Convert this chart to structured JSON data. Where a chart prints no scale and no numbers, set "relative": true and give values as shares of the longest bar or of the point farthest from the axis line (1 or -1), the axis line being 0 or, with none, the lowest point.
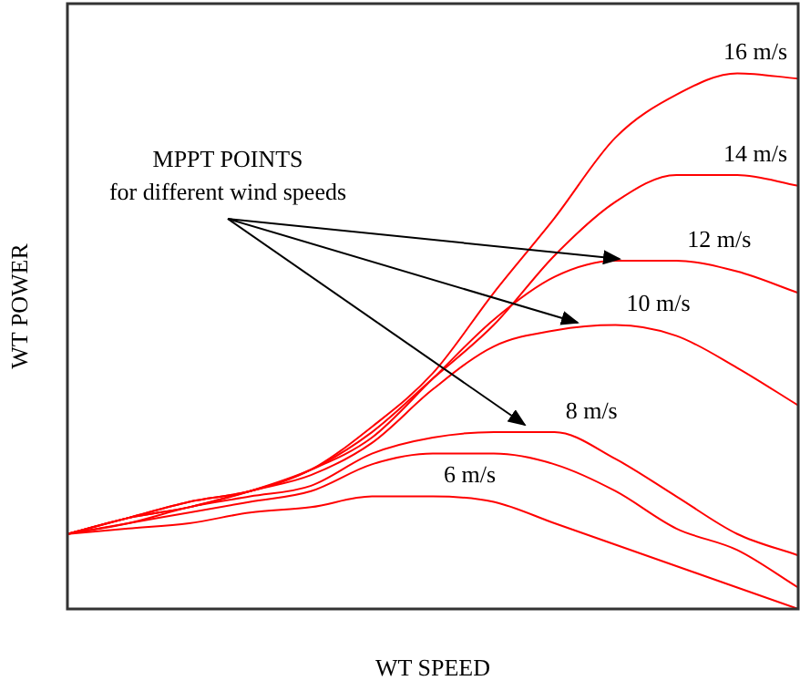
{
  "chart_data": {
    "type": "line",
    "relative": true,
    "xlabel": "WT SPEED",
    "ylabel": "WT POWER",
    "categories": [
      null,
      null,
      null,
      null,
      null,
      null,
      null,
      null,
      null,
      null,
      null,
      null,
      null
    ],
    "series": [
      {
        "name": "16 m/s",
        "color": "#ff0000",
        "values": [
          0.14,
          0.17,
          0.2,
          0.22,
          0.26,
          0.34,
          0.44,
          0.59,
          0.73,
          0.88,
          0.96,
          1.0,
          0.99
        ]
      },
      {
        "name": "14 m/s",
        "color": "#ff0000",
        "values": [
          0.14,
          0.17,
          0.2,
          0.22,
          0.26,
          0.33,
          0.43,
          0.53,
          0.66,
          0.76,
          0.81,
          0.81,
          0.79
        ]
      },
      {
        "name": "12 m/s",
        "color": "#ff0000",
        "values": [
          0.14,
          0.17,
          0.19,
          0.22,
          0.26,
          0.32,
          0.43,
          0.54,
          0.62,
          0.65,
          0.65,
          0.63,
          0.59
        ]
      },
      {
        "name": "10 m/s",
        "color": "#ff0000",
        "values": [
          0.14,
          0.17,
          0.19,
          0.22,
          0.25,
          0.31,
          0.41,
          0.49,
          0.52,
          0.53,
          0.51,
          0.45,
          0.38
        ]
      },
      {
        "name": "8 m/s",
        "color": "#ff0000",
        "values": [
          0.14,
          0.16,
          0.19,
          0.21,
          0.23,
          0.29,
          0.32,
          0.33,
          0.33,
          0.28,
          0.21,
          0.14,
          0.1
        ]
      },
      {
        "color": "#ff0000",
        "values": [
          0.14,
          0.16,
          0.18,
          0.2,
          0.22,
          0.27,
          0.29,
          0.29,
          0.27,
          0.22,
          0.15,
          0.11,
          0.04
        ]
      },
      {
        "name": "6 m/s",
        "color": "#ff0000",
        "values": [
          0.14,
          0.15,
          0.16,
          0.18,
          0.19,
          0.21,
          0.21,
          0.2,
          0.16,
          0.12,
          0.08,
          0.04,
          0.0
        ]
      }
    ],
    "annotations": [
      "MPPT POINTS",
      "for different wind speeds"
    ],
    "grid": false,
    "legend": false,
    "marker": "none",
    "line_style": "solid"
  }
}
